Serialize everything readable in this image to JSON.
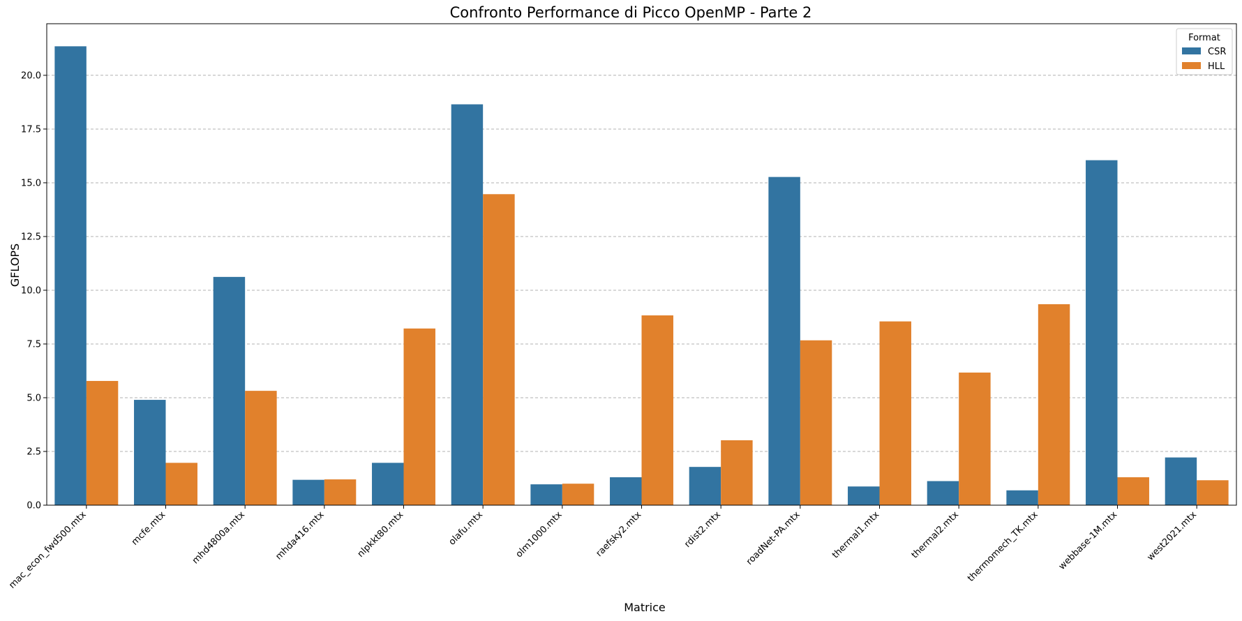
{
  "chart_data": {
    "type": "bar",
    "title": "Confronto Performance di Picco OpenMP - Parte 2",
    "xlabel": "Matrice",
    "ylabel": "GFLOPS",
    "ylim": [
      0,
      22.4
    ],
    "yticks": [
      "0.0",
      "2.5",
      "5.0",
      "7.5",
      "10.0",
      "12.5",
      "15.0",
      "17.5",
      "20.0"
    ],
    "grid": "y, dashed",
    "legend": {
      "title": "Format",
      "position": "top-right"
    },
    "categories": [
      "mac_econ_fwd500.mtx",
      "mcfe.mtx",
      "mhd4800a.mtx",
      "mhda416.mtx",
      "nlpkkt80.mtx",
      "olafu.mtx",
      "olm1000.mtx",
      "raefsky2.mtx",
      "rdist2.mtx",
      "roadNet-PA.mtx",
      "thermal1.mtx",
      "thermal2.mtx",
      "thermomech_TK.mtx",
      "webbase-1M.mtx",
      "west2021.mtx"
    ],
    "series": [
      {
        "name": "CSR",
        "color": "#3274a1",
        "values": [
          21.35,
          4.9,
          10.62,
          1.18,
          1.97,
          18.65,
          0.97,
          1.3,
          1.78,
          15.27,
          0.87,
          1.12,
          0.69,
          16.05,
          2.22
        ]
      },
      {
        "name": "HLL",
        "color": "#e1812c",
        "values": [
          5.78,
          1.97,
          5.32,
          1.2,
          8.22,
          14.47,
          1.0,
          8.83,
          3.02,
          7.67,
          8.55,
          6.17,
          9.35,
          1.3,
          1.16
        ]
      }
    ]
  }
}
